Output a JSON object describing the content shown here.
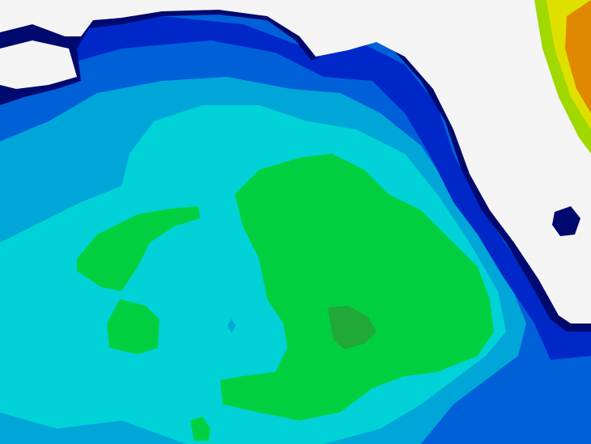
{
  "map": {
    "colors": {
      "land": "#f4f4f4",
      "level_navy": "#00096e",
      "level_blue": "#0028c8",
      "level_mid_blue": "#0060d8",
      "level_light_blue": "#00a6d8",
      "level_cyan": "#00d2d8",
      "level_green": "#00d040",
      "level_dark_green": "#20a838",
      "level_lime": "#a0d800",
      "level_yellow": "#e0e000",
      "level_orange": "#e08800"
    }
  }
}
